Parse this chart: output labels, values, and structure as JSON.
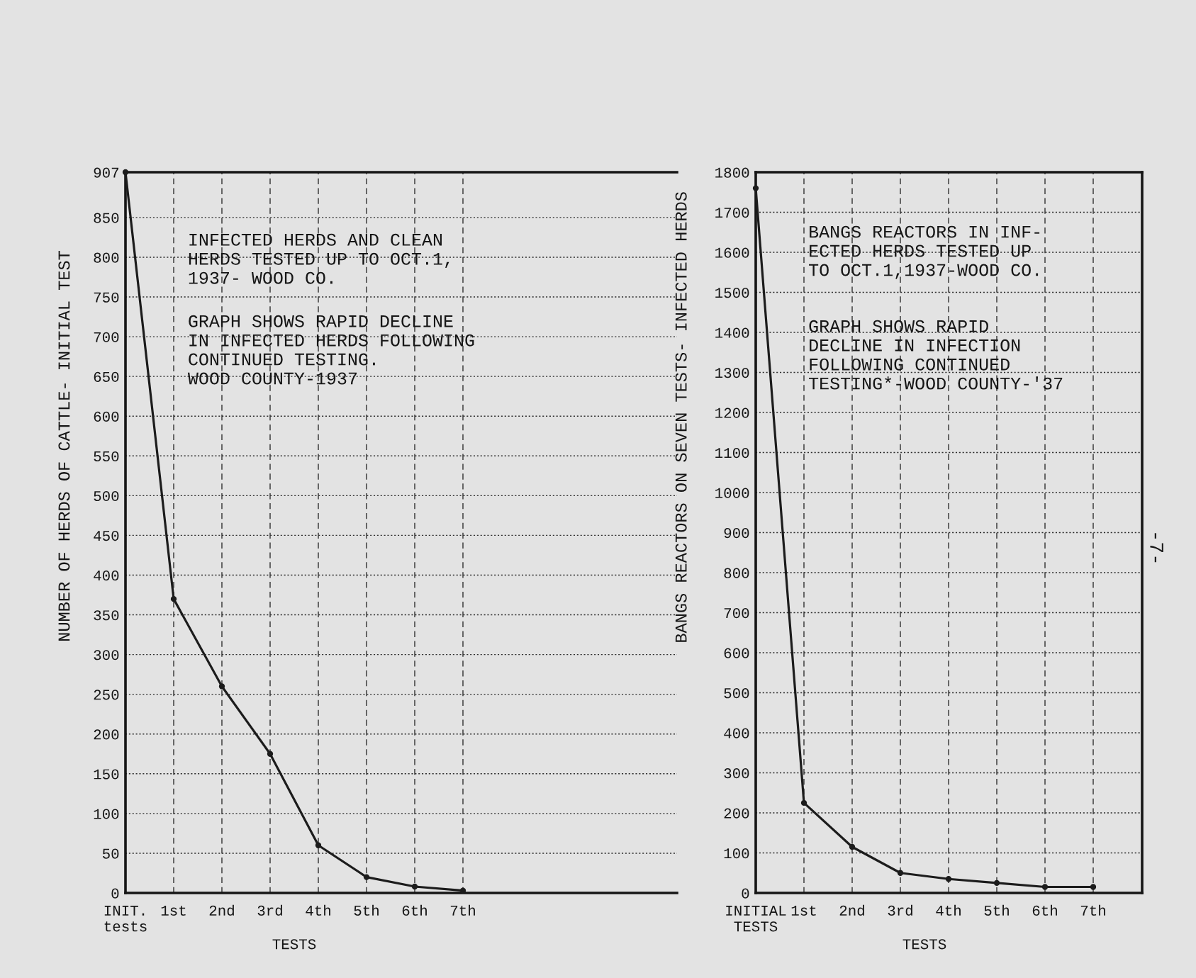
{
  "chart_data": [
    {
      "type": "line",
      "title": "INFECTED HERDS AND CLEAN\nHERDS TESTED UP TO OCT.1,\n1937- WOOD CO.",
      "subtitle": "GRAPH SHOWS RAPID DECLINE\nIN INFECTED HERDS FOLLOWING\nCONTINUED TESTING.\nWOOD COUNTY-1937",
      "xlabel": "TESTS",
      "ylabel": "NUMBER OF HERDS OF CATTLE- INITIAL TEST",
      "categories": [
        "INIT.\ntests",
        "1st",
        "2nd",
        "3rd",
        "4th",
        "5th",
        "6th",
        "7th"
      ],
      "values": [
        907,
        370,
        260,
        175,
        60,
        20,
        8,
        3
      ],
      "color": "#1c1c1c",
      "ylim": [
        0,
        907
      ],
      "yticks": [
        0,
        50,
        100,
        150,
        200,
        250,
        300,
        350,
        400,
        450,
        500,
        550,
        600,
        650,
        700,
        750,
        800,
        850,
        907
      ],
      "grid": true,
      "marker": "circle",
      "line_style": "solid"
    },
    {
      "type": "line",
      "title": "BANGS REACTORS IN INF-\nECTED HERDS TESTED UP\nTO OCT.1,1937-WOOD CO.",
      "subtitle": "GRAPH SHOWS RAPID\nDECLINE IN INFECTION\nFOLLOWING CONTINUED\nTESTING*-WOOD COUNTY-'37",
      "xlabel": "TESTS",
      "ylabel": "BANGS REACTORS ON SEVEN TESTS- INFECTED HERDS",
      "categories": [
        "INITIAL\nTESTS",
        "1st",
        "2nd",
        "3rd",
        "4th",
        "5th",
        "6th",
        "7th"
      ],
      "values": [
        1760,
        225,
        115,
        50,
        35,
        25,
        15,
        15
      ],
      "color": "#1c1c1c",
      "ylim": [
        0,
        1800
      ],
      "yticks": [
        0,
        100,
        200,
        300,
        400,
        500,
        600,
        700,
        800,
        900,
        1000,
        1100,
        1200,
        1300,
        1400,
        1500,
        1600,
        1700,
        1800
      ],
      "grid": true,
      "marker": "circle",
      "line_style": "solid",
      "annotations": [
        "-7-"
      ]
    }
  ]
}
